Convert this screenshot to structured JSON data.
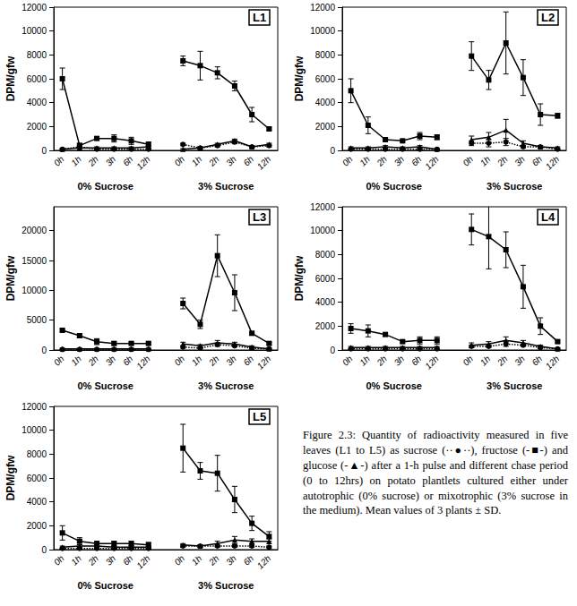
{
  "chart_data": [
    {
      "type": "line",
      "title": "L1",
      "ylabel": "DPM/gfw",
      "categories": [
        "0h",
        "1h",
        "2h",
        "3h",
        "6h",
        "12h",
        null,
        "0h",
        "1h",
        "2h",
        "3h",
        "6h",
        "12h"
      ],
      "annotations": [
        "0% Sucrose",
        "3% Sucrose"
      ],
      "ylim": [
        0,
        12000
      ],
      "yticks": [
        0,
        2000,
        4000,
        6000,
        8000,
        10000,
        12000
      ],
      "series": [
        {
          "name": "sucrose",
          "color": "#000000",
          "marker": "circle",
          "line_style": "dotted",
          "values": [
            100,
            300,
            100,
            100,
            100,
            100,
            null,
            500,
            200,
            400,
            700,
            300,
            400
          ],
          "errors": [
            50,
            100,
            50,
            50,
            50,
            50,
            null,
            100,
            100,
            100,
            150,
            100,
            100
          ]
        },
        {
          "name": "fructose",
          "color": "#000000",
          "marker": "square",
          "line_style": "solid",
          "values": [
            6000,
            400,
            1000,
            1000,
            800,
            500,
            null,
            7500,
            7100,
            6500,
            5400,
            3000,
            1800
          ],
          "errors": [
            900,
            200,
            100,
            300,
            300,
            200,
            null,
            400,
            1200,
            500,
            400,
            600,
            100
          ]
        },
        {
          "name": "glucose",
          "color": "#000000",
          "marker": "triangle",
          "line_style": "solid",
          "values": [
            100,
            200,
            200,
            200,
            200,
            300,
            null,
            100,
            200,
            500,
            800,
            300,
            500
          ],
          "errors": [
            50,
            100,
            100,
            100,
            100,
            100,
            null,
            50,
            100,
            100,
            150,
            100,
            100
          ]
        }
      ]
    },
    {
      "type": "line",
      "title": "L2",
      "ylabel": "DPM/gfw",
      "categories": [
        "0h",
        "1h",
        "2h",
        "3h",
        "6h",
        "12h",
        null,
        "0h",
        "1h",
        "2h",
        "3h",
        "6h",
        "12h"
      ],
      "annotations": [
        "0% Sucrose",
        "3% Sucrose"
      ],
      "ylim": [
        0,
        12000
      ],
      "yticks": [
        0,
        2000,
        4000,
        6000,
        8000,
        10000,
        12000
      ],
      "series": [
        {
          "name": "sucrose",
          "color": "#000000",
          "marker": "circle",
          "line_style": "dotted",
          "values": [
            100,
            100,
            100,
            100,
            100,
            100,
            null,
            600,
            600,
            700,
            300,
            300,
            100
          ],
          "errors": [
            50,
            50,
            50,
            50,
            50,
            50,
            null,
            200,
            300,
            300,
            100,
            100,
            50
          ]
        },
        {
          "name": "fructose",
          "color": "#000000",
          "marker": "square",
          "line_style": "solid",
          "values": [
            5000,
            2100,
            900,
            800,
            1200,
            1100,
            null,
            7900,
            5900,
            9000,
            6100,
            3000,
            2900
          ],
          "errors": [
            1000,
            700,
            100,
            100,
            300,
            200,
            null,
            1200,
            800,
            2600,
            1500,
            900,
            200
          ]
        },
        {
          "name": "glucose",
          "color": "#000000",
          "marker": "triangle",
          "line_style": "solid",
          "values": [
            200,
            200,
            300,
            200,
            300,
            100,
            null,
            900,
            1100,
            1700,
            600,
            300,
            200
          ],
          "errors": [
            100,
            100,
            100,
            100,
            100,
            50,
            null,
            300,
            400,
            900,
            200,
            100,
            100
          ]
        }
      ]
    },
    {
      "type": "line",
      "title": "L3",
      "ylabel": "DPM/gfw",
      "categories": [
        "0h",
        "1h",
        "2h",
        "3h",
        "6h",
        "12h",
        null,
        "0h",
        "1h",
        "2h",
        "3h",
        "6h",
        "12h"
      ],
      "annotations": [
        "0% Sucrose",
        "3% Sucrose"
      ],
      "ylim": [
        0,
        24000
      ],
      "yticks": [
        0,
        5000,
        10000,
        15000,
        20000
      ],
      "series": [
        {
          "name": "sucrose",
          "color": "#000000",
          "marker": "circle",
          "line_style": "dotted",
          "values": [
            100,
            100,
            100,
            100,
            100,
            100,
            null,
            500,
            300,
            900,
            700,
            300,
            200
          ],
          "errors": [
            50,
            50,
            50,
            50,
            50,
            50,
            null,
            200,
            100,
            300,
            200,
            100,
            100
          ]
        },
        {
          "name": "fructose",
          "color": "#000000",
          "marker": "square",
          "line_style": "solid",
          "values": [
            3300,
            2400,
            1400,
            1100,
            1100,
            1100,
            null,
            7800,
            4300,
            15800,
            9600,
            2800,
            1100
          ],
          "errors": [
            200,
            300,
            500,
            300,
            200,
            200,
            null,
            900,
            700,
            3500,
            3000,
            300,
            200
          ]
        },
        {
          "name": "glucose",
          "color": "#000000",
          "marker": "triangle",
          "line_style": "solid",
          "values": [
            200,
            200,
            200,
            200,
            200,
            200,
            null,
            1000,
            700,
            1200,
            1000,
            500,
            200
          ],
          "errors": [
            100,
            100,
            100,
            100,
            100,
            100,
            null,
            300,
            200,
            400,
            300,
            200,
            100
          ]
        }
      ]
    },
    {
      "type": "line",
      "title": "L4",
      "ylabel": "DPM/gfw",
      "categories": [
        "0h",
        "1h",
        "2h",
        "3h",
        "6h",
        "12h",
        null,
        "0h",
        "1h",
        "2h",
        "3h",
        "6h",
        "12h"
      ],
      "annotations": [
        "0% Sucrose",
        "3% Sucrose"
      ],
      "ylim": [
        0,
        12000
      ],
      "yticks": [
        0,
        2000,
        4000,
        6000,
        8000,
        10000,
        12000
      ],
      "series": [
        {
          "name": "sucrose",
          "color": "#000000",
          "marker": "circle",
          "line_style": "dotted",
          "values": [
            100,
            100,
            100,
            100,
            100,
            100,
            null,
            300,
            300,
            500,
            400,
            200,
            100
          ],
          "errors": [
            50,
            50,
            50,
            50,
            50,
            50,
            null,
            100,
            100,
            200,
            100,
            100,
            50
          ]
        },
        {
          "name": "fructose",
          "color": "#000000",
          "marker": "square",
          "line_style": "solid",
          "values": [
            1800,
            1600,
            1300,
            700,
            800,
            800,
            null,
            10100,
            9500,
            8400,
            5300,
            2000,
            700
          ],
          "errors": [
            400,
            500,
            100,
            100,
            300,
            300,
            null,
            1300,
            2700,
            1500,
            1800,
            700,
            100
          ]
        },
        {
          "name": "glucose",
          "color": "#000000",
          "marker": "triangle",
          "line_style": "solid",
          "values": [
            200,
            200,
            200,
            200,
            200,
            200,
            null,
            400,
            500,
            800,
            600,
            300,
            100
          ],
          "errors": [
            100,
            100,
            100,
            100,
            100,
            100,
            null,
            200,
            200,
            300,
            200,
            100,
            50
          ]
        }
      ]
    },
    {
      "type": "line",
      "title": "L5",
      "ylabel": "DPM/gfw",
      "categories": [
        "0h",
        "1h",
        "2h",
        "3h",
        "6h",
        "12h",
        null,
        "0h",
        "1h",
        "2h",
        "3h",
        "6h",
        "12h"
      ],
      "annotations": [
        "0% Sucrose",
        "3% Sucrose"
      ],
      "ylim": [
        0,
        12000
      ],
      "yticks": [
        0,
        2000,
        4000,
        6000,
        8000,
        10000,
        12000
      ],
      "series": [
        {
          "name": "sucrose",
          "color": "#000000",
          "marker": "circle",
          "line_style": "dotted",
          "values": [
            100,
            100,
            100,
            100,
            100,
            100,
            null,
            300,
            300,
            300,
            300,
            300,
            200
          ],
          "errors": [
            50,
            50,
            50,
            50,
            50,
            50,
            null,
            100,
            100,
            100,
            100,
            100,
            100
          ]
        },
        {
          "name": "fructose",
          "color": "#000000",
          "marker": "square",
          "line_style": "solid",
          "values": [
            1400,
            700,
            500,
            500,
            500,
            400,
            null,
            8500,
            6600,
            6400,
            4200,
            2200,
            1100
          ],
          "errors": [
            600,
            300,
            200,
            200,
            200,
            200,
            null,
            2000,
            700,
            1500,
            1100,
            600,
            400
          ]
        },
        {
          "name": "glucose",
          "color": "#000000",
          "marker": "triangle",
          "line_style": "solid",
          "values": [
            200,
            300,
            300,
            200,
            200,
            200,
            null,
            400,
            300,
            500,
            800,
            700,
            700
          ],
          "errors": [
            100,
            100,
            100,
            100,
            100,
            100,
            null,
            100,
            100,
            200,
            300,
            200,
            200
          ]
        }
      ]
    }
  ],
  "caption": "Figure 2.3: Quantity of radioactivity measured in five leaves (L1 to L5) as sucrose (··●··), fructose (-■-) and glucose (-▲-) after a 1-h pulse and different chase period (0 to 12hrs) on potato plantlets cultured either under autotrophic (0% sucrose) or mixotrophic (3% sucrose in the medium). Mean values of 3 plants ± SD."
}
